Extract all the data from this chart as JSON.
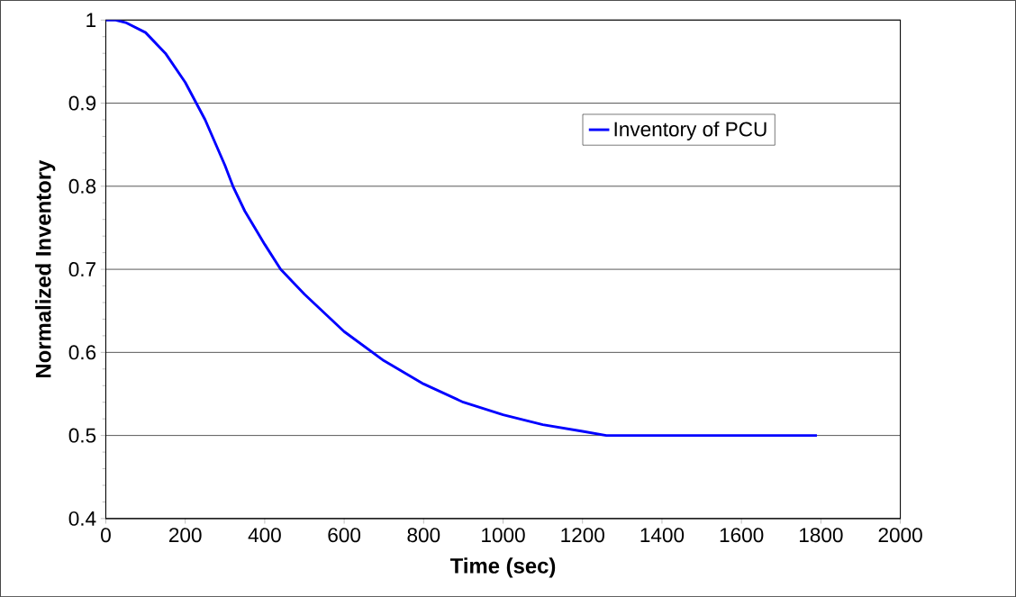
{
  "chart_data": {
    "type": "line",
    "xlabel": "Time (sec)",
    "ylabel": "Normalized Inventory",
    "x": [
      0,
      25,
      50,
      100,
      150,
      200,
      250,
      300,
      320,
      350,
      400,
      440,
      500,
      600,
      700,
      800,
      900,
      1000,
      1100,
      1200,
      1260,
      1500,
      1790
    ],
    "series": [
      {
        "name": "Inventory of PCU",
        "color": "#0000ff",
        "values": [
          1.0,
          1.0,
          0.997,
          0.985,
          0.96,
          0.925,
          0.88,
          0.825,
          0.8,
          0.77,
          0.73,
          0.7,
          0.67,
          0.625,
          0.59,
          0.562,
          0.54,
          0.525,
          0.513,
          0.505,
          0.5,
          0.5,
          0.5
        ]
      }
    ],
    "xlim": [
      0,
      2000
    ],
    "ylim": [
      0.4,
      1
    ],
    "xticks": [
      0,
      200,
      400,
      600,
      800,
      1000,
      1200,
      1400,
      1600,
      1800,
      2000
    ],
    "yticks": [
      0.4,
      0.5,
      0.6,
      0.7,
      0.8,
      0.9,
      1
    ],
    "grid": "y",
    "legend": "right",
    "marker": "none",
    "line_style": "solid"
  }
}
